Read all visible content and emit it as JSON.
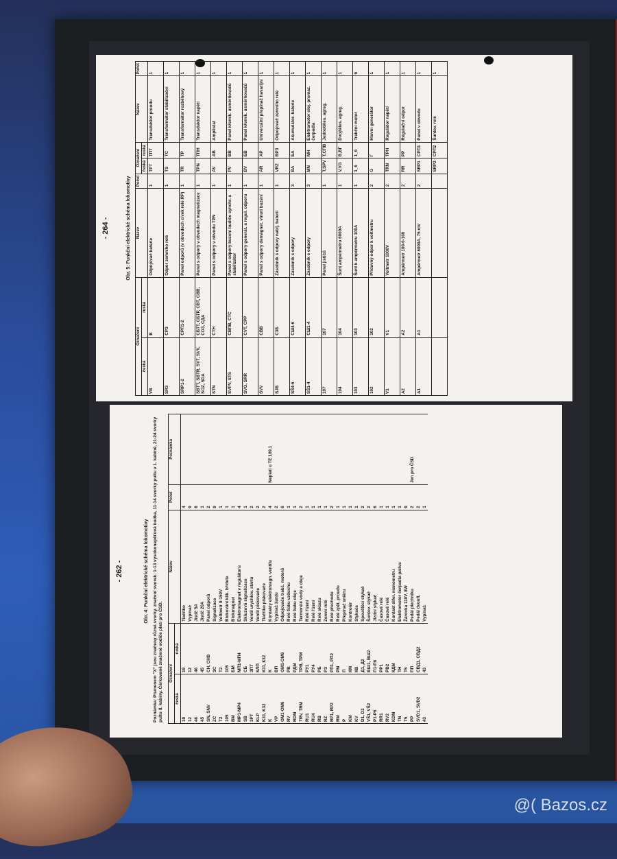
{
  "watermark": "@( Bazos.cz",
  "page_top": {
    "page_number": "- 264 -",
    "title": "Obr. 5: Funkční elektrické schéma lokomotivy",
    "headers": {
      "oznaceni": "Označení",
      "ceska": "česká",
      "ruska": "ruská",
      "nazev": "Název",
      "pocet": "Počet"
    },
    "rows": [
      [
        "VB",
        "B",
        "Odpojovač baterie",
        "1",
        "TPT",
        "TПТ",
        "Transduktor proudu",
        "1"
      ],
      [
        "SR3",
        "СРЗ",
        "Odpor zemního relé",
        "1",
        "TS",
        "TC",
        "Transformátor stabilizační",
        "1"
      ],
      [
        "SRP1-2",
        "СРП1-2",
        "Panel odporů (v obvodech cívek relé RP)",
        "1",
        "TR",
        "TP",
        "Transformátor rozběhový",
        "1"
      ],
      [
        "SBTT, SBTR, SVT, SVV, SOZ, SDA",
        "СБТТ, СБТР, СВТ, СВВ, СОЗ, СДА",
        "Panel s odpory v obvodech magnetizace",
        "1",
        "TPN",
        "ТПН",
        "Transduktor napětí",
        "1"
      ],
      [
        "STN",
        "CTH",
        "Panel s odpory v obvodu TPN",
        "1",
        "AV",
        "AB",
        "Amplistat",
        "1"
      ],
      [
        "SVPV, STS",
        "СВПВ, СТС",
        "Panel s odpory buzení budiče synchr. a stabilizátor",
        "1",
        "PV",
        "ВВ",
        "Panel křemík. usměrňovačů",
        "1"
      ],
      [
        "SVG, SRR",
        "CVT, CPP",
        "Panel s odpory generát. a regul. odporu",
        "1",
        "BV",
        "БВ",
        "Panel křemík. usměrňovačů",
        "1"
      ],
      [
        "SVV",
        "CBB",
        "Panel s odpory demagnet. vinutí buzení",
        "1",
        "AR",
        "AP",
        "Univerzální přepínač havarijní",
        "1"
      ],
      [
        "SJB",
        "C3Б",
        "Zásobník s odpory nabíj. baterií",
        "1",
        "VRZ",
        "ВРЗ",
        "Odpojovač zemního relé",
        "1"
      ],
      [
        "SŠ4-6",
        "СШ4-6",
        "Zásobník s odpory",
        "3",
        "BA",
        "БА",
        "Akumulátor. baterie",
        "1"
      ],
      [
        "SŠ1-4",
        "СШ1-4",
        "Zásobník s odpory",
        "3",
        "MN",
        "МН",
        "Elektromotor olej. promaz. čerpadla",
        "1"
      ],
      [
        "107",
        "107",
        "Panel jističů",
        "1",
        "T,SPV",
        "T,СПВ",
        "Jednotěles. agreg.",
        "1"
      ],
      [
        "104",
        "104",
        "Šunt ampérmetru 6000A",
        "1",
        "V,VG",
        "В,ВГ",
        "Dvojtěles. agreg.",
        "1"
      ],
      [
        "103",
        "103",
        "Šunt k ampérmetru 100A",
        "1",
        "1_6",
        "1_6",
        "Trakční motor",
        "6"
      ],
      [
        "102",
        "102",
        "Přídavný odpor k voltmetru",
        "2",
        "G",
        "Г",
        "Hlavní generátor",
        "1"
      ],
      [
        "V1",
        "V1",
        "Voltmetr 1000V",
        "2",
        "TRN",
        "ТРН",
        "Regulátor napětí",
        "1"
      ],
      [
        "A2",
        "A2",
        "Ampérmetr 100-0-100",
        "2",
        "RR",
        "PP",
        "Regulační odpor",
        "1"
      ],
      [
        "A1",
        "A1",
        "Ampérmetr 6000A, 75 mV",
        "2",
        "SRP1",
        "СРП1",
        "Panel v obvodu",
        "1"
      ],
      [
        "",
        "",
        "",
        "",
        "SRP2",
        "СРП2",
        "Šuntov. relé",
        "1"
      ]
    ]
  },
  "page_bottom": {
    "page_number": "- 262 -",
    "title": "Obr. 4: Funkční elektrické schéma lokomotivy",
    "note": "Poznámka: Písmenem \"X\" jsou značeny různé svorky. značení svorek: 1-13 vysokonapěťová budka, 11-14 svorky pultu v 1. kabině, 21-24 svorky pultu ll. kabiny. Čárkovaně značené vodiče platí pro ČSD.",
    "headers": {
      "oznaceni": "Označení",
      "ceska": "česká",
      "ruska": "ruská",
      "nazev": "Název",
      "pocet": "Počet",
      "poznamka": "Poznámka"
    },
    "rows": [
      [
        "19",
        "19",
        "Tlačítko",
        "4",
        ""
      ],
      [
        "12",
        "12",
        "Vypínač",
        "9",
        ""
      ],
      [
        "46",
        "46",
        "Jistič 5A",
        "8",
        ""
      ],
      [
        "45",
        "45",
        "Jistič 20A",
        "1",
        ""
      ],
      [
        "SN, SNV",
        "СН, СНВ",
        "Panel odporů",
        "2",
        ""
      ],
      [
        "ZC",
        "ЗС",
        "Signalizace",
        "9",
        ""
      ],
      [
        "T2",
        "T2",
        "Voltmetr 0-150V",
        "1",
        ""
      ],
      [
        "105",
        "105",
        "Blokování klik. hřídele",
        "1",
        ""
      ],
      [
        "BM",
        "БМ",
        "Blokmagnet",
        "1",
        ""
      ],
      [
        "MP1-MP4",
        "МП1-МП4",
        "Elektromagnet v regulátoru",
        "4",
        ""
      ],
      [
        "SB",
        "СБ",
        "Skluzová signalizace",
        "1",
        ""
      ],
      [
        "3PT",
        "3ПТ",
        "Ventil urychlov. startu",
        "2",
        ""
      ],
      [
        "KLP",
        "КЛП",
        "Ventil pískovače",
        "2",
        ""
      ],
      [
        "K31, K32",
        "К31, К32",
        "Tlačítko pískovače",
        "2",
        ""
      ],
      [
        "K",
        "K",
        "Kontakty elektromagn. ventilu",
        "4",
        "Neplatí u TE 109.1"
      ],
      [
        "VP",
        "ВП",
        "Vypínač šuntu",
        "2",
        ""
      ],
      [
        "OM1-OM6",
        "ОМ1-ОМ6",
        "Odpojovače trakč. motorů",
        "6",
        ""
      ],
      [
        "RV",
        "РВ",
        "Relé tlaku vzduchu",
        "1",
        ""
      ],
      [
        "RDM",
        "РДМ",
        "Relé tlaku oleje",
        "1",
        ""
      ],
      [
        "TRV, TRM",
        "ТРВ, ТРМ",
        "Termorelé vody a oleje",
        "2",
        ""
      ],
      [
        "RU1",
        "РУ1",
        "Relé řízení",
        "1",
        ""
      ],
      [
        "RU4",
        "РУ4",
        "Relé řízení",
        "1",
        ""
      ],
      [
        "RB",
        "РБ",
        "Relé skluzu",
        "1",
        ""
      ],
      [
        "RZ",
        "РЗ",
        "Zemní relé",
        "1",
        ""
      ],
      [
        "RP1, RP2",
        "РП1, РП2",
        "Relé přechodu",
        "2",
        ""
      ],
      [
        "RM",
        "РМ",
        "Relé zpět. proudu",
        "1",
        ""
      ],
      [
        "P",
        "П",
        "Přepínač směru",
        "1",
        ""
      ],
      [
        "KM",
        "КМ",
        "Kontrolér",
        "1",
        ""
      ],
      [
        "KV",
        "КВ",
        "Stykače",
        "1",
        ""
      ],
      [
        "D1, D2",
        "Д1, Д2",
        "Spouštěcí stykač",
        "2",
        ""
      ],
      [
        "VŠ1, VŠ2",
        "ВШ1, ВШ2",
        "Šuntov. stykač",
        "2",
        ""
      ],
      [
        "P1-P6",
        "П1-П6",
        "Jízdní stykač",
        "6",
        ""
      ],
      [
        "RR1",
        "РР1",
        "Časové relé",
        "1",
        ""
      ],
      [
        "RV2",
        "РВ2",
        "Časové relé",
        "1",
        ""
      ],
      [
        "KDM",
        "КДМ",
        "Kontakt difer. manometru",
        "1",
        ""
      ],
      [
        "TN",
        "ТН",
        "Elektromotor čerpadla paliva",
        "1",
        ""
      ],
      [
        "T5",
        "T5",
        "Žárovka 110V, 8W",
        "9",
        ""
      ],
      [
        "PP",
        "ПП",
        "Pedál plechníku",
        "2",
        "Jen pro ČSD"
      ],
      [
        "SVD1, SVD2",
        "СВД1, СВД2",
        "Pedál dvoufl.",
        "2",
        ""
      ],
      [
        "43",
        "43",
        "Vypínač",
        "1",
        ""
      ]
    ]
  }
}
